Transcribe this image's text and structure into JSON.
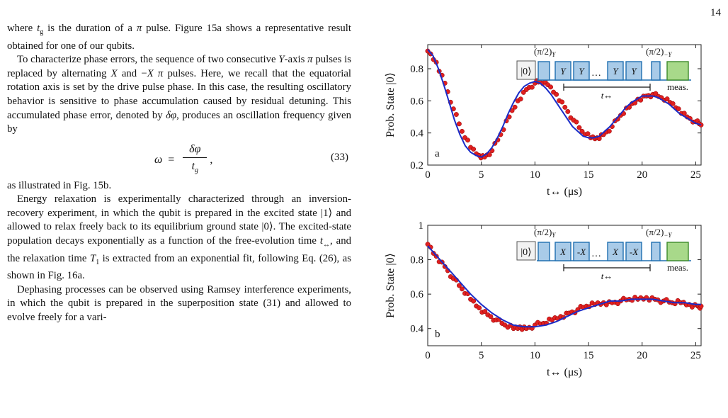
{
  "page_number": "14",
  "paragraphs": [
    {
      "segments": [
        {
          "t": "where "
        },
        {
          "t": "t",
          "i": true
        },
        {
          "t": "g",
          "sub": true
        },
        {
          "t": " is the duration of a "
        },
        {
          "t": "π",
          "i": true
        },
        {
          "t": " pulse. Figure 15a shows a representative result obtained for one of our qubits."
        }
      ],
      "indent": false
    },
    {
      "segments": [
        {
          "t": "To characterize phase errors, the sequence of two consecutive "
        },
        {
          "t": "Y",
          "i": true
        },
        {
          "t": "-axis "
        },
        {
          "t": "π",
          "i": true
        },
        {
          "t": " pulses is replaced by alternating "
        },
        {
          "t": "X",
          "i": true
        },
        {
          "t": " and −"
        },
        {
          "t": "X",
          "i": true
        },
        {
          "t": " "
        },
        {
          "t": "π",
          "i": true
        },
        {
          "t": " pulses. Here, we recall that the equatorial rotation axis is set by the drive pulse phase. In this case, the resulting oscillatory behavior is sensitive to phase accumulation caused by residual detuning. This accumulated phase error, denoted by "
        },
        {
          "t": "δφ",
          "i": true
        },
        {
          "t": ", produces an oscillation frequency given by"
        }
      ],
      "indent": true
    },
    {
      "segments": [
        {
          "t": "as illustrated in Fig. 15b."
        }
      ],
      "indent": false
    },
    {
      "segments": [
        {
          "t": "Energy relaxation is experimentally characterized through an inversion-recovery experiment, in which the qubit is prepared in the excited state |1⟩ and allowed to relax freely back to its equilibrium ground state |0⟩. The excited-state population decays exponentially as a function of the free-evolution time "
        },
        {
          "t": "t",
          "i": true
        },
        {
          "t": "↔",
          "sub": true
        },
        {
          "t": ", and the relaxation time "
        },
        {
          "t": "T",
          "i": true
        },
        {
          "t": "1",
          "sub": true
        },
        {
          "t": " is extracted from an exponential fit, following Eq. (26), as shown in Fig. 16a."
        }
      ],
      "indent": true
    },
    {
      "segments": [
        {
          "t": "Dephasing processes can be observed using Ramsey interference experiments, in which the qubit is prepared in the superposition state (31) and allowed to evolve freely for a vari-"
        }
      ],
      "indent": true
    }
  ],
  "equation": {
    "lhs": "ω",
    "equals": "=",
    "numerator": "δφ",
    "denominator": "t",
    "denominator_sub": "g",
    "trailing": ",",
    "number": "(33)"
  },
  "chart_data": [
    {
      "type": "scatter",
      "panel_label": "a",
      "ylabel": "Prob. State |0⟩",
      "xlabel": "t↔ (μs)",
      "xlim": [
        0,
        25.5
      ],
      "ylim": [
        0.2,
        0.95
      ],
      "xticks": [
        0,
        5,
        10,
        15,
        20,
        25
      ],
      "yticks": [
        0.2,
        0.4,
        0.6,
        0.8
      ],
      "ytick_labels": [
        "0.2",
        "0.4",
        "0.6",
        "0.8"
      ],
      "grid": false,
      "series": [
        {
          "kind": "markers",
          "color": "#e02020",
          "x": [
            0.0,
            0.8,
            1.6,
            2.4,
            3.2,
            4.0,
            4.8,
            5.3,
            6.0,
            6.8,
            7.6,
            8.4,
            9.2,
            10.0,
            10.5,
            11.2,
            12.0,
            12.8,
            13.6,
            14.4,
            15.2,
            15.8,
            16.4,
            17.2,
            18.0,
            18.8,
            19.6,
            20.4,
            21.0,
            21.8,
            22.6,
            23.4,
            24.2,
            25.0,
            25.5
          ],
          "y": [
            0.91,
            0.84,
            0.71,
            0.55,
            0.41,
            0.31,
            0.26,
            0.25,
            0.29,
            0.39,
            0.5,
            0.6,
            0.67,
            0.71,
            0.72,
            0.7,
            0.64,
            0.56,
            0.48,
            0.41,
            0.37,
            0.37,
            0.39,
            0.44,
            0.51,
            0.56,
            0.61,
            0.63,
            0.64,
            0.62,
            0.59,
            0.55,
            0.5,
            0.47,
            0.45
          ]
        },
        {
          "kind": "fit",
          "color": "#1a2cc8",
          "x": [
            0.0,
            0.5,
            1.0,
            1.5,
            2.0,
            2.5,
            3.0,
            3.5,
            4.0,
            4.5,
            5.0,
            5.5,
            6.0,
            6.5,
            7.0,
            7.5,
            8.0,
            8.5,
            9.0,
            9.5,
            10.0,
            10.5,
            11.0,
            11.5,
            12.0,
            12.5,
            13.0,
            13.5,
            14.0,
            14.5,
            15.0,
            15.5,
            16.0,
            16.5,
            17.0,
            17.5,
            18.0,
            18.5,
            19.0,
            19.5,
            20.0,
            20.5,
            21.0,
            21.5,
            22.0,
            22.5,
            23.0,
            23.5,
            24.0,
            24.5,
            25.0,
            25.5
          ],
          "y": [
            0.92,
            0.88,
            0.8,
            0.7,
            0.59,
            0.48,
            0.39,
            0.32,
            0.28,
            0.26,
            0.25,
            0.27,
            0.31,
            0.37,
            0.44,
            0.52,
            0.59,
            0.65,
            0.69,
            0.71,
            0.72,
            0.71,
            0.68,
            0.64,
            0.59,
            0.54,
            0.49,
            0.44,
            0.41,
            0.38,
            0.37,
            0.37,
            0.38,
            0.41,
            0.44,
            0.48,
            0.52,
            0.56,
            0.59,
            0.61,
            0.63,
            0.63,
            0.63,
            0.62,
            0.6,
            0.58,
            0.55,
            0.52,
            0.5,
            0.48,
            0.46,
            0.45
          ]
        }
      ],
      "inset": {
        "ket": "|0⟩",
        "top_left": "(π/2)",
        "top_left_sub": "Y",
        "top_right": "(π/2)",
        "top_right_sub": "−Y",
        "pulses": [
          "Y",
          "Y",
          "Y",
          "Y"
        ],
        "ellipsis": "…",
        "meas": "meas.",
        "t_label": "t↔"
      }
    },
    {
      "type": "scatter",
      "panel_label": "b",
      "ylabel": "Prob. State |0⟩",
      "xlabel": "t↔ (μs)",
      "xlim": [
        0,
        25.5
      ],
      "ylim": [
        0.3,
        1.0
      ],
      "xticks": [
        0,
        5,
        10,
        15,
        20,
        25
      ],
      "yticks": [
        0.4,
        0.6,
        0.8,
        1.0
      ],
      "ytick_labels": [
        "0.4",
        "0.6",
        "0.8",
        "1"
      ],
      "grid": false,
      "series": [
        {
          "kind": "markers",
          "color": "#e02020",
          "x": [
            0.0,
            0.8,
            1.6,
            2.4,
            3.2,
            4.0,
            4.8,
            5.6,
            6.4,
            7.2,
            8.0,
            8.6,
            9.2,
            10.0,
            10.8,
            11.6,
            12.4,
            13.2,
            14.0,
            14.8,
            15.6,
            16.4,
            17.2,
            18.0,
            18.8,
            19.6,
            20.4,
            21.2,
            22.0,
            22.8,
            23.6,
            24.4,
            25.2,
            25.5
          ],
          "y": [
            0.89,
            0.82,
            0.76,
            0.69,
            0.63,
            0.57,
            0.52,
            0.48,
            0.45,
            0.42,
            0.4,
            0.41,
            0.4,
            0.42,
            0.43,
            0.45,
            0.47,
            0.49,
            0.51,
            0.53,
            0.54,
            0.55,
            0.55,
            0.56,
            0.57,
            0.57,
            0.58,
            0.57,
            0.56,
            0.55,
            0.55,
            0.54,
            0.53,
            0.53
          ]
        },
        {
          "kind": "fit",
          "color": "#1a2cc8",
          "x": [
            0.0,
            1.0,
            2.0,
            3.0,
            4.0,
            5.0,
            6.0,
            7.0,
            8.0,
            9.0,
            10.0,
            11.0,
            12.0,
            13.0,
            14.0,
            15.0,
            16.0,
            17.0,
            18.0,
            19.0,
            20.0,
            21.0,
            22.0,
            23.0,
            24.0,
            25.0,
            25.5
          ],
          "y": [
            0.88,
            0.81,
            0.74,
            0.67,
            0.6,
            0.54,
            0.49,
            0.45,
            0.42,
            0.41,
            0.41,
            0.42,
            0.44,
            0.47,
            0.5,
            0.52,
            0.54,
            0.56,
            0.56,
            0.57,
            0.57,
            0.57,
            0.56,
            0.55,
            0.55,
            0.54,
            0.54
          ]
        }
      ],
      "inset": {
        "ket": "|0⟩",
        "top_left": "(π/2)",
        "top_left_sub": "Y",
        "top_right": "(π/2)",
        "top_right_sub": "−Y",
        "pulses": [
          "X",
          "-X",
          "X",
          "-X"
        ],
        "ellipsis": "…",
        "meas": "meas.",
        "t_label": "t↔"
      }
    }
  ]
}
